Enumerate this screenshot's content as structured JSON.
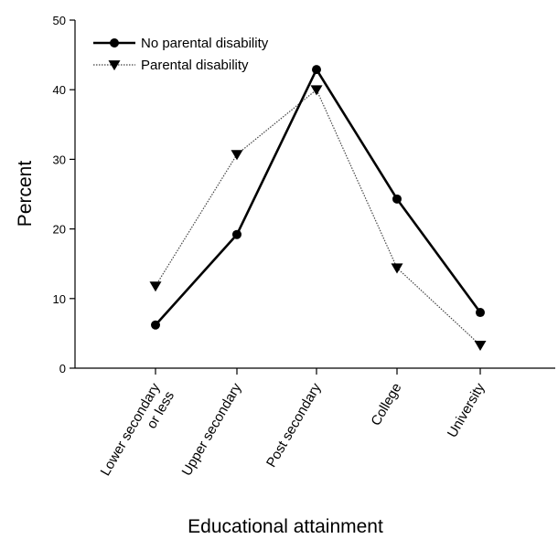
{
  "chart_data": {
    "type": "line",
    "title": "",
    "xlabel": "Educational attainment",
    "ylabel": "Percent",
    "ylim": [
      0,
      50
    ],
    "yticks": [
      0,
      10,
      20,
      30,
      40,
      50
    ],
    "categories": [
      [
        "Lower secondary",
        "or less"
      ],
      [
        "Upper secondary"
      ],
      [
        "Post secondary"
      ],
      [
        "College"
      ],
      [
        "University"
      ]
    ],
    "series": [
      {
        "name": "No parental disability",
        "marker": "circle",
        "line": "thick",
        "values": [
          6.2,
          19.2,
          42.9,
          24.3,
          8.0
        ]
      },
      {
        "name": "Parental disability",
        "marker": "triangle-down",
        "line": "thin",
        "values": [
          11.8,
          30.7,
          40.0,
          14.4,
          3.3
        ]
      }
    ],
    "legend": {
      "position": "top-left"
    },
    "grid": false
  }
}
